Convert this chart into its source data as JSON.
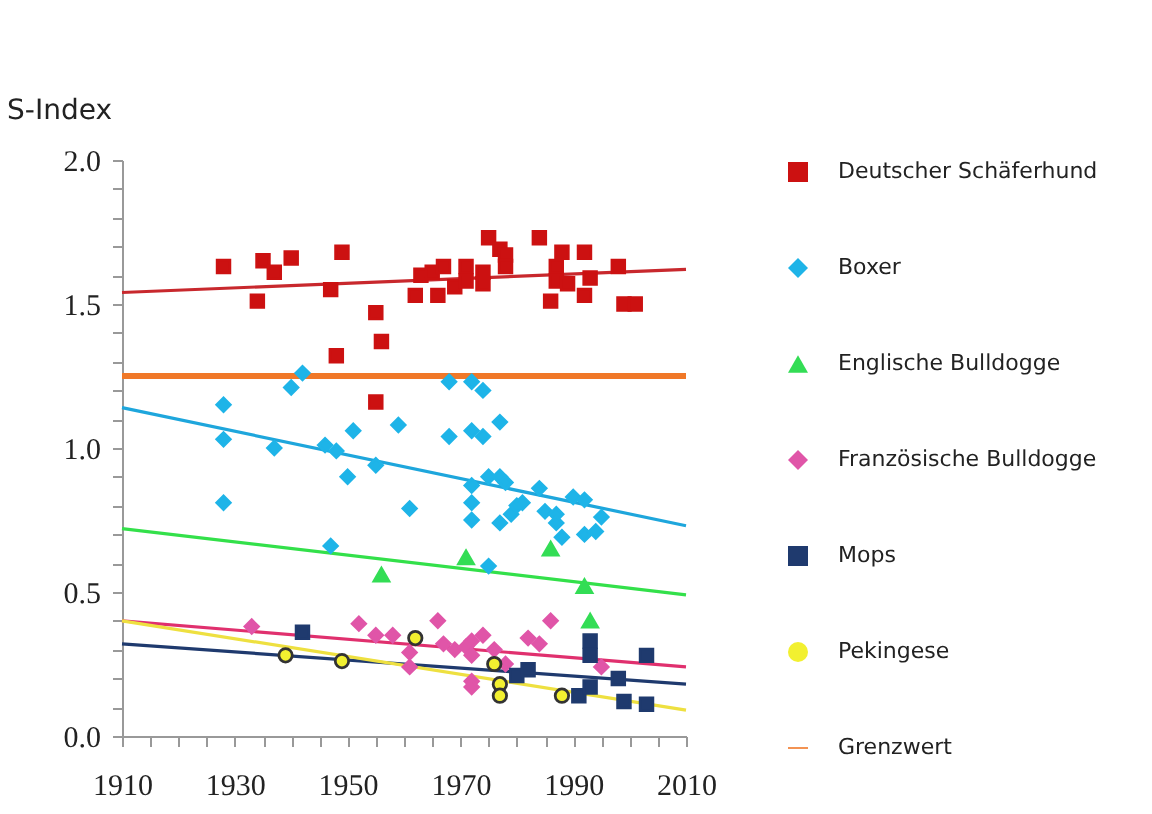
{
  "chart_data": {
    "type": "scatter",
    "ylabel": "S-Index",
    "xlim": [
      1910,
      2010
    ],
    "xticks": [
      1910,
      {
        "value": 1915,
        "label": null
      },
      {
        "value": 1920,
        "label": null
      },
      {
        "value": 1925,
        "label": null
      },
      1930,
      {
        "value": 1935,
        "label": null
      },
      {
        "value": 1940,
        "label": null
      },
      {
        "value": 1945,
        "label": null
      },
      1950,
      {
        "value": 1955,
        "label": null
      },
      {
        "value": 1960,
        "label": null
      },
      {
        "value": 1965,
        "label": null
      },
      1970,
      {
        "value": 1975,
        "label": null
      },
      {
        "value": 1980,
        "label": null
      },
      {
        "value": 1985,
        "label": null
      },
      1990,
      {
        "value": 1995,
        "label": null
      },
      {
        "value": 2000,
        "label": null
      },
      {
        "value": 2005,
        "label": null
      },
      2010
    ],
    "ylim": [
      0,
      2
    ],
    "yticks": [
      {
        "value": 0,
        "label": "0.0"
      },
      {
        "value": 0.1,
        "label": null
      },
      {
        "value": 0.2,
        "label": null
      },
      {
        "value": 0.3,
        "label": null
      },
      {
        "value": 0.4,
        "label": null
      },
      0.5,
      {
        "value": 0.6,
        "label": null
      },
      {
        "value": 0.7,
        "label": null
      },
      {
        "value": 0.8,
        "label": null
      },
      {
        "value": 0.9,
        "label": null
      },
      {
        "value": 1,
        "label": "1.0"
      },
      {
        "value": 1.1,
        "label": null
      },
      {
        "value": 1.2,
        "label": null
      },
      {
        "value": 1.3,
        "label": null
      },
      {
        "value": 1.4,
        "label": null
      },
      1.5,
      {
        "value": 1.6,
        "label": null
      },
      {
        "value": 1.7,
        "label": null
      },
      {
        "value": 1.8,
        "label": null
      },
      {
        "value": 1.9,
        "label": null
      },
      {
        "value": 2,
        "label": "2.0"
      }
    ],
    "grid": false,
    "legend": "right",
    "series": [
      {
        "name": "Deutscher Schäferhund",
        "color": "#cc1111",
        "marker": "square",
        "x": [
          1928,
          1934,
          1935,
          1937,
          1940,
          1947,
          1949,
          1948,
          1955,
          1956,
          1955,
          1962,
          1963,
          1965,
          1966,
          1967,
          1969,
          1971,
          1971,
          1974,
          1974,
          1975,
          1977,
          1978,
          1978,
          1984,
          1986,
          1987,
          1988,
          1987,
          1989,
          1992,
          1992,
          1993,
          1998,
          1999,
          2001
        ],
        "values": [
          1.63,
          1.51,
          1.65,
          1.61,
          1.66,
          1.55,
          1.68,
          1.32,
          1.47,
          1.37,
          1.16,
          1.53,
          1.6,
          1.61,
          1.53,
          1.63,
          1.56,
          1.63,
          1.58,
          1.61,
          1.57,
          1.73,
          1.69,
          1.67,
          1.63,
          1.73,
          1.51,
          1.63,
          1.68,
          1.58,
          1.57,
          1.68,
          1.53,
          1.59,
          1.63,
          1.5,
          1.5
        ]
      },
      {
        "name": "Boxer",
        "color": "#1eb4e8",
        "marker": "diamond",
        "x": [
          1928,
          1928,
          1928,
          1937,
          1940,
          1942,
          1946,
          1947,
          1948,
          1950,
          1951,
          1955,
          1959,
          1961,
          1968,
          1968,
          1972,
          1972,
          1972,
          1974,
          1974,
          1972,
          1972,
          1975,
          1977,
          1975,
          1977,
          1978,
          1977,
          1979,
          1980,
          1981,
          1984,
          1985,
          1987,
          1987,
          1988,
          1990,
          1992,
          1992,
          1994,
          1995
        ],
        "values": [
          1.15,
          1.03,
          0.81,
          1.0,
          1.21,
          1.26,
          1.01,
          0.66,
          0.99,
          0.9,
          1.06,
          0.94,
          1.08,
          0.79,
          1.04,
          1.23,
          1.06,
          0.87,
          1.23,
          1.2,
          1.04,
          0.81,
          0.75,
          0.59,
          1.09,
          0.9,
          0.9,
          0.88,
          0.74,
          0.77,
          0.8,
          0.81,
          0.86,
          0.78,
          0.77,
          0.74,
          0.69,
          0.83,
          0.7,
          0.82,
          0.71,
          0.76
        ]
      },
      {
        "name": "Englische Bulldogge",
        "color": "#33dd55",
        "marker": "triangle",
        "x": [
          1956,
          1971,
          1986,
          1992,
          1993
        ],
        "values": [
          0.56,
          0.62,
          0.65,
          0.52,
          0.4
        ]
      },
      {
        "name": "Französische Bulldogge",
        "color": "#e055a8",
        "marker": "diamond",
        "x": [
          1933,
          1952,
          1955,
          1958,
          1961,
          1961,
          1966,
          1967,
          1969,
          1971,
          1972,
          1974,
          1972,
          1972,
          1972,
          1976,
          1978,
          1982,
          1984,
          1986,
          1995
        ],
        "values": [
          0.38,
          0.39,
          0.35,
          0.35,
          0.29,
          0.24,
          0.4,
          0.32,
          0.3,
          0.31,
          0.33,
          0.35,
          0.28,
          0.19,
          0.17,
          0.3,
          0.25,
          0.34,
          0.32,
          0.4,
          0.24
        ]
      },
      {
        "name": "Mops",
        "color": "#1f3a6e",
        "marker": "square",
        "x": [
          1942,
          1980,
          1982,
          1991,
          1993,
          1993,
          1993,
          1998,
          1999,
          2003,
          2003
        ],
        "values": [
          0.36,
          0.21,
          0.23,
          0.14,
          0.33,
          0.28,
          0.17,
          0.2,
          0.12,
          0.11,
          0.28
        ]
      },
      {
        "name": "Pekingese",
        "color": "#f2f030",
        "marker": "circle",
        "x": [
          1939,
          1949,
          1962,
          1976,
          1977,
          1977,
          1988
        ],
        "values": [
          0.28,
          0.26,
          0.34,
          0.25,
          0.18,
          0.14,
          0.14
        ]
      },
      {
        "type": "line",
        "color": "#c8282d",
        "x": [
          1910,
          2010
        ],
        "values": [
          1.54,
          1.62
        ]
      },
      {
        "type": "line",
        "color": "#1ea6dc",
        "x": [
          1910,
          2010
        ],
        "values": [
          1.14,
          0.73
        ]
      },
      {
        "type": "line",
        "color": "#33e04a",
        "x": [
          1910,
          2010
        ],
        "values": [
          0.72,
          0.49
        ]
      },
      {
        "type": "line",
        "color": "#e0306e",
        "x": [
          1910,
          2010
        ],
        "values": [
          0.4,
          0.24
        ]
      },
      {
        "type": "line",
        "color": "#1f3a6e",
        "x": [
          1910,
          2010
        ],
        "values": [
          0.32,
          0.18
        ]
      },
      {
        "type": "line",
        "color": "#eee040",
        "x": [
          1910,
          2010
        ],
        "values": [
          0.4,
          0.09
        ]
      }
    ],
    "ref_lines": [
      {
        "axis": "y",
        "value": 1.25,
        "label": "Grenzwert",
        "color": "#f07828"
      }
    ]
  }
}
